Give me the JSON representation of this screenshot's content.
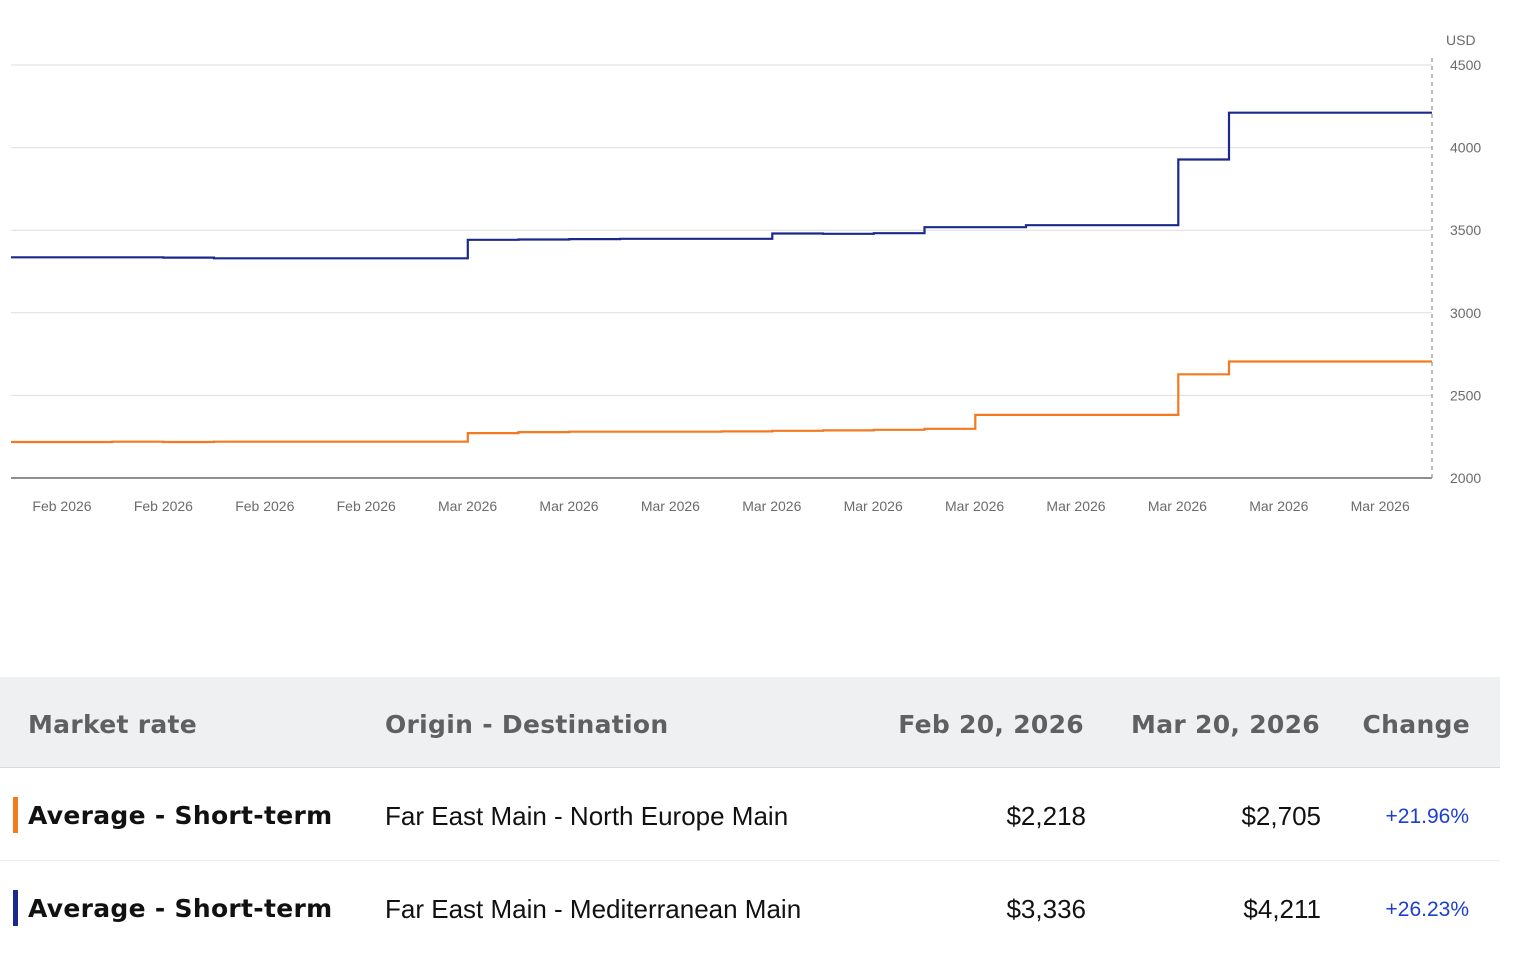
{
  "colors": {
    "series_blue": "#1a2a8c",
    "series_orange": "#f47a20",
    "change_text": "#1c3fcf"
  },
  "chart_data": {
    "type": "line",
    "step": true,
    "unit_label": "USD",
    "y_ticks": [
      "4500",
      "4000",
      "3500",
      "3000",
      "2500",
      "2000"
    ],
    "ylim": [
      2000,
      4500
    ],
    "x_tick_labels": [
      "Feb 2026",
      "Feb 2026",
      "Feb 2026",
      "Feb 2026",
      "Mar 2026",
      "Mar 2026",
      "Mar 2026",
      "Mar 2026",
      "Mar 2026",
      "Mar 2026",
      "Mar 2026",
      "Mar 2026",
      "Mar 2026",
      "Mar 2026"
    ],
    "x": [
      "Feb 20, 2026",
      "Feb 21, 2026",
      "Feb 22, 2026",
      "Feb 23, 2026",
      "Feb 24, 2026",
      "Feb 25, 2026",
      "Feb 26, 2026",
      "Feb 27, 2026",
      "Feb 28, 2026",
      "Mar 1, 2026",
      "Mar 2, 2026",
      "Mar 3, 2026",
      "Mar 4, 2026",
      "Mar 5, 2026",
      "Mar 6, 2026",
      "Mar 7, 2026",
      "Mar 8, 2026",
      "Mar 9, 2026",
      "Mar 10, 2026",
      "Mar 11, 2026",
      "Mar 12, 2026",
      "Mar 13, 2026",
      "Mar 14, 2026",
      "Mar 15, 2026",
      "Mar 16, 2026",
      "Mar 17, 2026",
      "Mar 18, 2026",
      "Mar 19, 2026",
      "Mar 20, 2026"
    ],
    "series": [
      {
        "color": "#1a2a8c",
        "values": [
          3336,
          3336,
          3336,
          3334,
          3330,
          3330,
          3330,
          3330,
          3330,
          3442,
          3444,
          3446,
          3448,
          3448,
          3448,
          3480,
          3478,
          3482,
          3518,
          3518,
          3530,
          3530,
          3530,
          3928,
          4211,
          4211,
          4211,
          4211,
          4211
        ]
      },
      {
        "color": "#f47a20",
        "values": [
          2218,
          2218,
          2220,
          2218,
          2220,
          2220,
          2220,
          2220,
          2220,
          2272,
          2278,
          2280,
          2280,
          2280,
          2282,
          2286,
          2288,
          2292,
          2298,
          2382,
          2382,
          2382,
          2382,
          2628,
          2705,
          2705,
          2705,
          2705,
          2705
        ]
      }
    ]
  },
  "table": {
    "headers": {
      "rate": "Market rate",
      "route": "Origin - Destination",
      "date1": "Feb 20, 2026",
      "date2": "Mar 20, 2026",
      "change": "Change"
    },
    "rows": [
      {
        "rate": "Average - Short-term",
        "route": "Far East Main - North Europe Main",
        "v1": "$2,218",
        "v2": "$2,705",
        "change": "+21.96%",
        "color": "#f47a20"
      },
      {
        "rate": "Average - Short-term",
        "route": "Far East Main - Mediterranean Main",
        "v1": "$3,336",
        "v2": "$4,211",
        "change": "+26.23%",
        "color": "#1a2a8c"
      }
    ]
  }
}
